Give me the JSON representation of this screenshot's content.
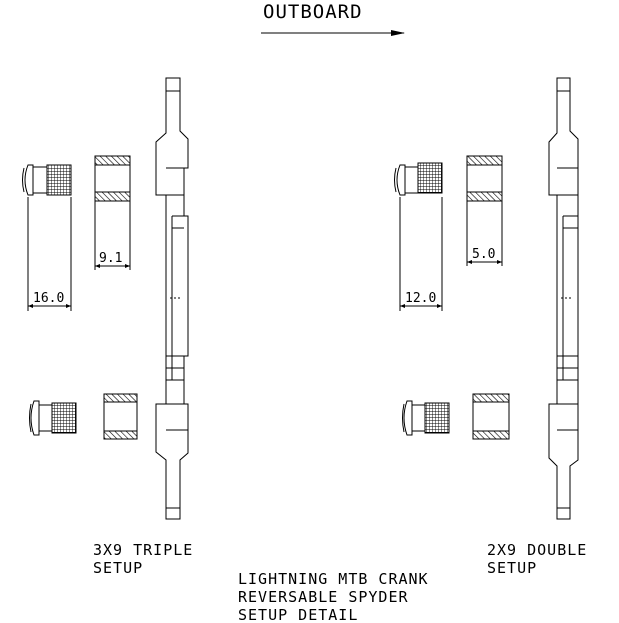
{
  "header": {
    "direction_label": "OUTBOARD"
  },
  "left_setup": {
    "caption_line1": "3X9 TRIPLE",
    "caption_line2": "SETUP",
    "bolt_length_dim": "16.0",
    "spacer_width_dim": "9.1"
  },
  "right_setup": {
    "caption_line1": "2X9 DOUBLE",
    "caption_line2": "SETUP",
    "bolt_length_dim": "12.0",
    "spacer_width_dim": "5.0"
  },
  "footer": {
    "line1": "LIGHTNING MTB CRANK",
    "line2": "REVERSABLE SPYDER",
    "line3": "SETUP DETAIL"
  }
}
